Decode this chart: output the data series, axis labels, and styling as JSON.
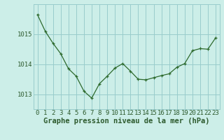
{
  "x": [
    0,
    1,
    2,
    3,
    4,
    5,
    6,
    7,
    8,
    9,
    10,
    11,
    12,
    13,
    14,
    15,
    16,
    17,
    18,
    19,
    20,
    21,
    22,
    23
  ],
  "y": [
    1015.65,
    1015.1,
    1014.7,
    1014.35,
    1013.85,
    1013.6,
    1013.1,
    1012.87,
    1013.35,
    1013.6,
    1013.87,
    1014.02,
    1013.77,
    1013.5,
    1013.48,
    1013.55,
    1013.62,
    1013.68,
    1013.9,
    1014.02,
    1014.45,
    1014.52,
    1014.5,
    1014.88
  ],
  "line_color": "#2d6a2d",
  "marker_color": "#2d6a2d",
  "bg_color": "#cceee8",
  "grid_color": "#99cccc",
  "xlabel": "Graphe pression niveau de la mer (hPa)",
  "ylabel_ticks": [
    1013,
    1014,
    1015
  ],
  "ylim": [
    1012.5,
    1016.0
  ],
  "xlim": [
    -0.5,
    23.5
  ],
  "tick_fontsize": 6.5,
  "label_fontsize": 7.5,
  "text_color": "#2d5a2d"
}
